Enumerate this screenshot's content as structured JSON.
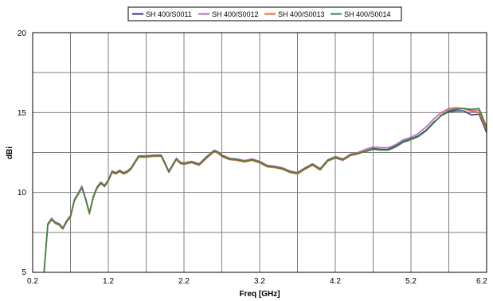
{
  "chart_data": {
    "type": "line",
    "title": "",
    "xlabel": "Freq [GHz]",
    "ylabel": "dBi",
    "xlim": [
      0.2,
      6.2
    ],
    "ylim": [
      5,
      20
    ],
    "x_ticks": [
      "0.2",
      "1.2",
      "2.2",
      "3.2",
      "4.2",
      "5.2",
      "6.2"
    ],
    "y_ticks": [
      "5",
      "10",
      "15",
      "20"
    ],
    "grid": true,
    "legend_position": "top",
    "x": [
      0.35,
      0.4,
      0.45,
      0.5,
      0.55,
      0.6,
      0.65,
      0.7,
      0.75,
      0.8,
      0.85,
      0.9,
      0.95,
      1.0,
      1.05,
      1.1,
      1.15,
      1.2,
      1.25,
      1.3,
      1.35,
      1.4,
      1.45,
      1.5,
      1.6,
      1.7,
      1.8,
      1.9,
      2.0,
      2.1,
      2.15,
      2.2,
      2.3,
      2.4,
      2.5,
      2.6,
      2.65,
      2.7,
      2.8,
      2.9,
      3.0,
      3.1,
      3.2,
      3.3,
      3.4,
      3.5,
      3.6,
      3.7,
      3.8,
      3.9,
      4.0,
      4.1,
      4.2,
      4.3,
      4.4,
      4.5,
      4.6,
      4.7,
      4.8,
      4.9,
      5.0,
      5.1,
      5.2,
      5.3,
      5.4,
      5.5,
      5.6,
      5.7,
      5.8,
      5.9,
      6.0,
      6.1,
      6.2
    ],
    "series": [
      {
        "name": "SH 400/S0011",
        "color": "#2e3192",
        "values": [
          5.0,
          8.0,
          8.35,
          8.1,
          8.0,
          7.75,
          8.2,
          8.5,
          9.5,
          9.9,
          10.35,
          9.6,
          8.7,
          9.7,
          10.3,
          10.6,
          10.4,
          10.75,
          11.3,
          11.2,
          11.35,
          11.2,
          11.3,
          11.5,
          12.25,
          12.25,
          12.3,
          12.3,
          11.3,
          12.1,
          11.85,
          11.8,
          11.9,
          11.75,
          12.2,
          12.6,
          12.5,
          12.3,
          12.1,
          12.05,
          11.95,
          12.05,
          11.9,
          11.65,
          11.6,
          11.5,
          11.3,
          11.2,
          11.5,
          11.75,
          11.45,
          12.0,
          12.2,
          12.05,
          12.35,
          12.45,
          12.6,
          12.75,
          12.7,
          12.7,
          12.9,
          13.2,
          13.35,
          13.55,
          13.9,
          14.4,
          14.8,
          15.05,
          15.1,
          15.1,
          14.85,
          14.9,
          13.75
        ]
      },
      {
        "name": "SH 400/S0012",
        "color": "#c05fbe",
        "values": [
          5.0,
          8.05,
          8.4,
          8.15,
          8.05,
          7.8,
          8.25,
          8.55,
          9.55,
          9.95,
          10.4,
          9.65,
          8.75,
          9.75,
          10.35,
          10.65,
          10.45,
          10.8,
          11.35,
          11.25,
          11.4,
          11.25,
          11.35,
          11.55,
          12.3,
          12.3,
          12.35,
          12.35,
          11.35,
          12.15,
          11.9,
          11.85,
          11.95,
          11.8,
          12.25,
          12.65,
          12.55,
          12.35,
          12.15,
          12.1,
          12.0,
          12.1,
          11.95,
          11.7,
          11.65,
          11.55,
          11.35,
          11.25,
          11.55,
          11.8,
          11.5,
          12.05,
          12.25,
          12.1,
          12.4,
          12.5,
          12.7,
          12.85,
          12.8,
          12.8,
          13.0,
          13.3,
          13.45,
          13.7,
          14.1,
          14.6,
          15.0,
          15.25,
          15.3,
          15.25,
          15.1,
          15.15,
          14.0
        ]
      },
      {
        "name": "SH 400/S0013",
        "color": "#f26522",
        "values": [
          5.0,
          7.95,
          8.3,
          8.05,
          7.95,
          7.7,
          8.15,
          8.45,
          9.45,
          9.85,
          10.3,
          9.55,
          8.65,
          9.65,
          10.25,
          10.55,
          10.35,
          10.7,
          11.25,
          11.15,
          11.3,
          11.15,
          11.25,
          11.45,
          12.2,
          12.2,
          12.25,
          12.25,
          11.25,
          12.05,
          11.8,
          11.75,
          11.85,
          11.7,
          12.15,
          12.55,
          12.45,
          12.25,
          12.05,
          12.0,
          11.9,
          12.0,
          11.85,
          11.6,
          11.55,
          11.45,
          11.25,
          11.15,
          11.45,
          11.7,
          11.4,
          11.95,
          12.15,
          12.0,
          12.3,
          12.4,
          12.6,
          12.7,
          12.65,
          12.65,
          12.85,
          13.15,
          13.3,
          13.5,
          13.85,
          14.35,
          14.85,
          15.15,
          15.25,
          15.25,
          15.05,
          15.0,
          13.9
        ]
      },
      {
        "name": "SH 400/S0014",
        "color": "#2e8b3e",
        "values": [
          5.0,
          8.0,
          8.3,
          8.1,
          8.0,
          7.75,
          8.2,
          8.5,
          9.5,
          9.9,
          10.3,
          9.6,
          8.7,
          9.7,
          10.3,
          10.6,
          10.4,
          10.75,
          11.3,
          11.2,
          11.35,
          11.2,
          11.3,
          11.5,
          12.25,
          12.25,
          12.3,
          12.3,
          11.3,
          12.1,
          11.85,
          11.8,
          11.9,
          11.75,
          12.2,
          12.6,
          12.5,
          12.3,
          12.1,
          12.05,
          11.95,
          12.05,
          11.9,
          11.65,
          11.6,
          11.5,
          11.3,
          11.2,
          11.5,
          11.75,
          11.45,
          12.0,
          12.2,
          12.05,
          12.35,
          12.45,
          12.55,
          12.7,
          12.65,
          12.65,
          12.85,
          13.15,
          13.3,
          13.5,
          13.85,
          14.35,
          14.8,
          15.1,
          15.2,
          15.25,
          15.2,
          15.25,
          14.1
        ]
      }
    ]
  }
}
